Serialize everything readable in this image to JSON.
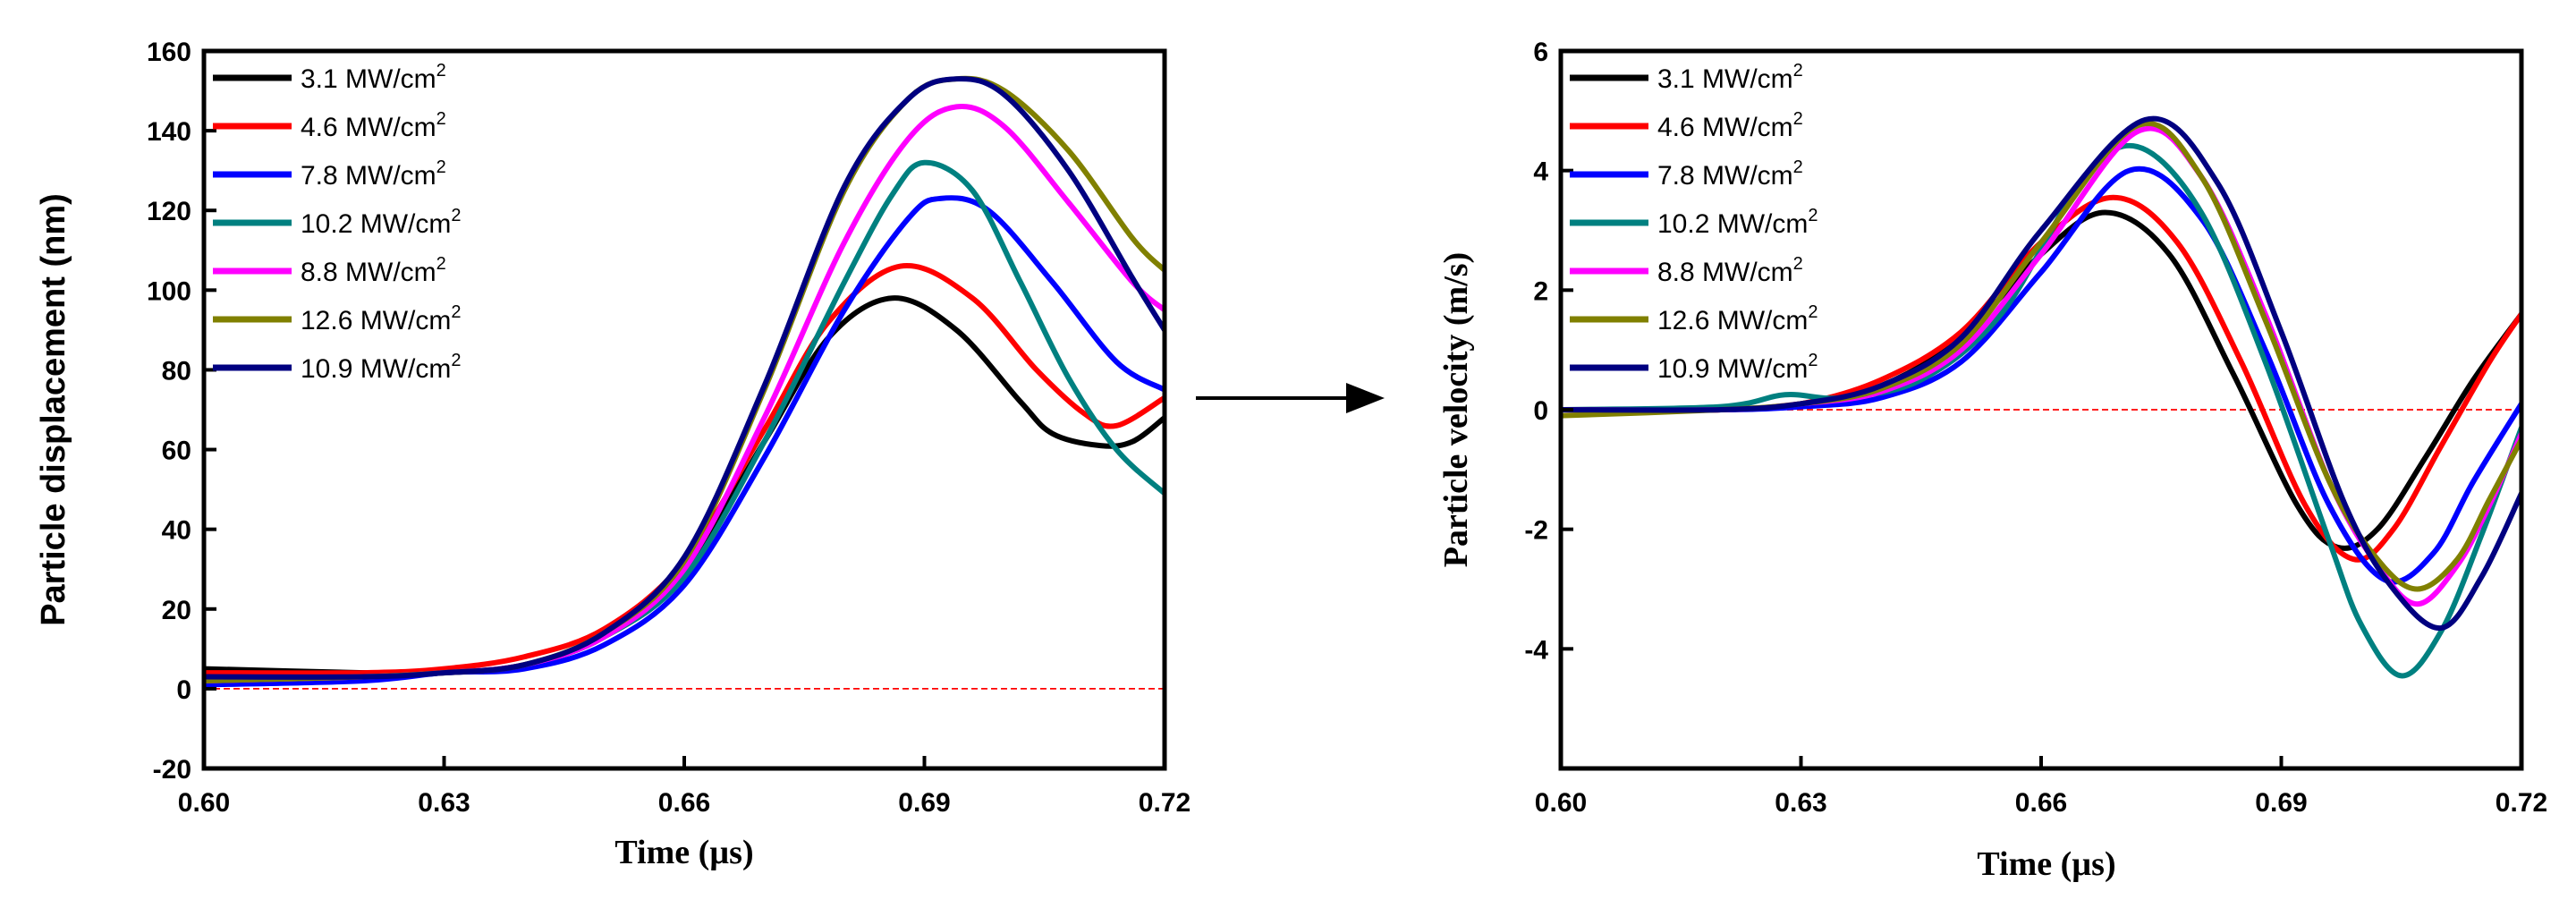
{
  "colors": {
    "s1": "#000000",
    "s2": "#ff0000",
    "s3": "#0000ff",
    "s4": "#008080",
    "s5": "#ff00ff",
    "s6": "#808000",
    "s7": "#000080",
    "zero_line": "#ff0000",
    "arrow": "#000000"
  },
  "chart_data": [
    {
      "type": "line",
      "xlabel": "Time (µs)",
      "ylabel": "Particle displacement (nm)",
      "xlim": [
        0.6,
        0.72
      ],
      "ylim": [
        -20,
        160
      ],
      "xticks": [
        "0.60",
        "0.63",
        "0.66",
        "0.69",
        "0.72"
      ],
      "yticks": [
        "-20",
        "0",
        "20",
        "40",
        "60",
        "80",
        "100",
        "120",
        "140",
        "160"
      ],
      "zero_line": true,
      "legend_position": "top-left",
      "series": [
        {
          "name": "3.1 MW/cm",
          "sup": "2",
          "x": [
            0.6,
            0.62,
            0.63,
            0.64,
            0.65,
            0.66,
            0.67,
            0.678,
            0.686,
            0.694,
            0.702,
            0.706,
            0.712,
            0.716,
            0.72
          ],
          "y": [
            5,
            4,
            4,
            6,
            13,
            30,
            62,
            88,
            98,
            90,
            72,
            64,
            61,
            62,
            68
          ]
        },
        {
          "name": "4.6 MW/cm",
          "sup": "2",
          "x": [
            0.6,
            0.62,
            0.63,
            0.64,
            0.65,
            0.66,
            0.67,
            0.678,
            0.687,
            0.696,
            0.704,
            0.71,
            0.714,
            0.72
          ],
          "y": [
            4,
            4,
            5,
            8,
            15,
            32,
            65,
            92,
            106,
            98,
            80,
            69,
            66,
            73
          ]
        },
        {
          "name": "7.8 MW/cm",
          "sup": "2",
          "x": [
            0.6,
            0.62,
            0.63,
            0.64,
            0.65,
            0.66,
            0.67,
            0.68,
            0.688,
            0.692,
            0.698,
            0.706,
            0.714,
            0.72
          ],
          "y": [
            1,
            2,
            4,
            5,
            11,
            26,
            58,
            95,
            118,
            123,
            120,
            102,
            82,
            75
          ]
        },
        {
          "name": "10.2 MW/cm",
          "sup": "2",
          "x": [
            0.6,
            0.62,
            0.63,
            0.64,
            0.65,
            0.66,
            0.67,
            0.68,
            0.686,
            0.69,
            0.696,
            0.702,
            0.708,
            0.714,
            0.72
          ],
          "y": [
            2,
            3,
            4,
            6,
            13,
            28,
            62,
            102,
            124,
            132,
            125,
            102,
            78,
            60,
            49
          ]
        },
        {
          "name": "8.8 MW/cm",
          "sup": "2",
          "x": [
            0.6,
            0.62,
            0.63,
            0.64,
            0.65,
            0.66,
            0.67,
            0.68,
            0.688,
            0.694,
            0.7,
            0.708,
            0.716,
            0.72
          ],
          "y": [
            2,
            3,
            4,
            6,
            13,
            30,
            68,
            112,
            138,
            146,
            141,
            122,
            102,
            95
          ]
        },
        {
          "name": "12.6 MW/cm",
          "sup": "2",
          "x": [
            0.6,
            0.62,
            0.63,
            0.64,
            0.65,
            0.66,
            0.67,
            0.68,
            0.688,
            0.694,
            0.7,
            0.708,
            0.716,
            0.72
          ],
          "y": [
            2,
            3,
            4,
            6,
            14,
            32,
            75,
            125,
            148,
            153,
            150,
            135,
            113,
            105
          ]
        },
        {
          "name": "10.9 MW/cm",
          "sup": "2",
          "x": [
            0.6,
            0.62,
            0.63,
            0.64,
            0.65,
            0.66,
            0.67,
            0.68,
            0.688,
            0.694,
            0.7,
            0.708,
            0.716,
            0.72
          ],
          "y": [
            3,
            3,
            4,
            6,
            14,
            33,
            76,
            126,
            148,
            153,
            149,
            130,
            103,
            90
          ]
        }
      ]
    },
    {
      "type": "line",
      "xlabel": "Time (µs)",
      "ylabel": "Particle velocity (m/s)",
      "xlim": [
        0.6,
        0.72
      ],
      "ylim": [
        -6,
        6
      ],
      "xticks": [
        "0.60",
        "0.63",
        "0.66",
        "0.69",
        "0.72"
      ],
      "yticks": [
        "-4",
        "-2",
        "0",
        "2",
        "4",
        "6"
      ],
      "zero_line": true,
      "legend_position": "top-left",
      "series": [
        {
          "name": "3.1 MW/cm",
          "sup": "2",
          "x": [
            0.6,
            0.62,
            0.63,
            0.64,
            0.65,
            0.66,
            0.668,
            0.676,
            0.684,
            0.692,
            0.697,
            0.702,
            0.708,
            0.714,
            0.72
          ],
          "y": [
            0,
            0,
            0.1,
            0.4,
            1.2,
            2.6,
            3.3,
            2.6,
            0.6,
            -1.6,
            -2.3,
            -2.0,
            -0.8,
            0.5,
            1.6
          ]
        },
        {
          "name": "4.6 MW/cm",
          "sup": "2",
          "x": [
            0.6,
            0.62,
            0.63,
            0.64,
            0.65,
            0.66,
            0.669,
            0.677,
            0.685,
            0.693,
            0.699,
            0.704,
            0.71,
            0.716,
            0.72
          ],
          "y": [
            0,
            0,
            0.1,
            0.5,
            1.3,
            2.8,
            3.55,
            2.8,
            0.8,
            -1.6,
            -2.5,
            -2.0,
            -0.6,
            0.8,
            1.6
          ]
        },
        {
          "name": "7.8 MW/cm",
          "sup": "2",
          "x": [
            0.6,
            0.62,
            0.63,
            0.64,
            0.65,
            0.66,
            0.671,
            0.68,
            0.688,
            0.696,
            0.703,
            0.709,
            0.714,
            0.72
          ],
          "y": [
            0,
            0,
            0.05,
            0.2,
            0.8,
            2.3,
            4.0,
            3.2,
            1.0,
            -1.6,
            -2.85,
            -2.4,
            -1.2,
            0.1
          ]
        },
        {
          "name": "10.2 MW/cm",
          "sup": "2",
          "x": [
            0.6,
            0.62,
            0.628,
            0.635,
            0.645,
            0.655,
            0.665,
            0.672,
            0.68,
            0.688,
            0.696,
            0.7,
            0.705,
            0.71,
            0.715,
            0.72
          ],
          "y": [
            0,
            0.05,
            0.25,
            0.2,
            0.5,
            1.6,
            3.8,
            4.4,
            3.3,
            0.8,
            -2.2,
            -3.6,
            -4.45,
            -3.7,
            -2.1,
            -0.3
          ]
        },
        {
          "name": "8.8 MW/cm",
          "sup": "2",
          "x": [
            0.6,
            0.62,
            0.63,
            0.64,
            0.65,
            0.66,
            0.672,
            0.68,
            0.688,
            0.696,
            0.702,
            0.707,
            0.712,
            0.716,
            0.72
          ],
          "y": [
            0,
            0,
            0.1,
            0.3,
            1.0,
            2.6,
            4.65,
            3.9,
            1.6,
            -1.2,
            -2.6,
            -3.25,
            -2.6,
            -1.6,
            -0.4
          ]
        },
        {
          "name": "12.6 MW/cm",
          "sup": "2",
          "x": [
            0.6,
            0.62,
            0.63,
            0.64,
            0.65,
            0.66,
            0.672,
            0.68,
            0.688,
            0.696,
            0.702,
            0.707,
            0.712,
            0.716,
            0.72
          ],
          "y": [
            -0.1,
            0,
            0.1,
            0.35,
            1.1,
            2.8,
            4.75,
            3.9,
            1.5,
            -1.2,
            -2.5,
            -3.0,
            -2.5,
            -1.5,
            -0.5
          ]
        },
        {
          "name": "10.9 MW/cm",
          "sup": "2",
          "x": [
            0.6,
            0.62,
            0.63,
            0.64,
            0.65,
            0.66,
            0.673,
            0.682,
            0.69,
            0.698,
            0.704,
            0.71,
            0.715,
            0.72
          ],
          "y": [
            0,
            0,
            0.1,
            0.4,
            1.2,
            3.0,
            4.85,
            3.8,
            1.3,
            -1.6,
            -3.0,
            -3.65,
            -2.8,
            -1.4
          ]
        }
      ]
    }
  ]
}
